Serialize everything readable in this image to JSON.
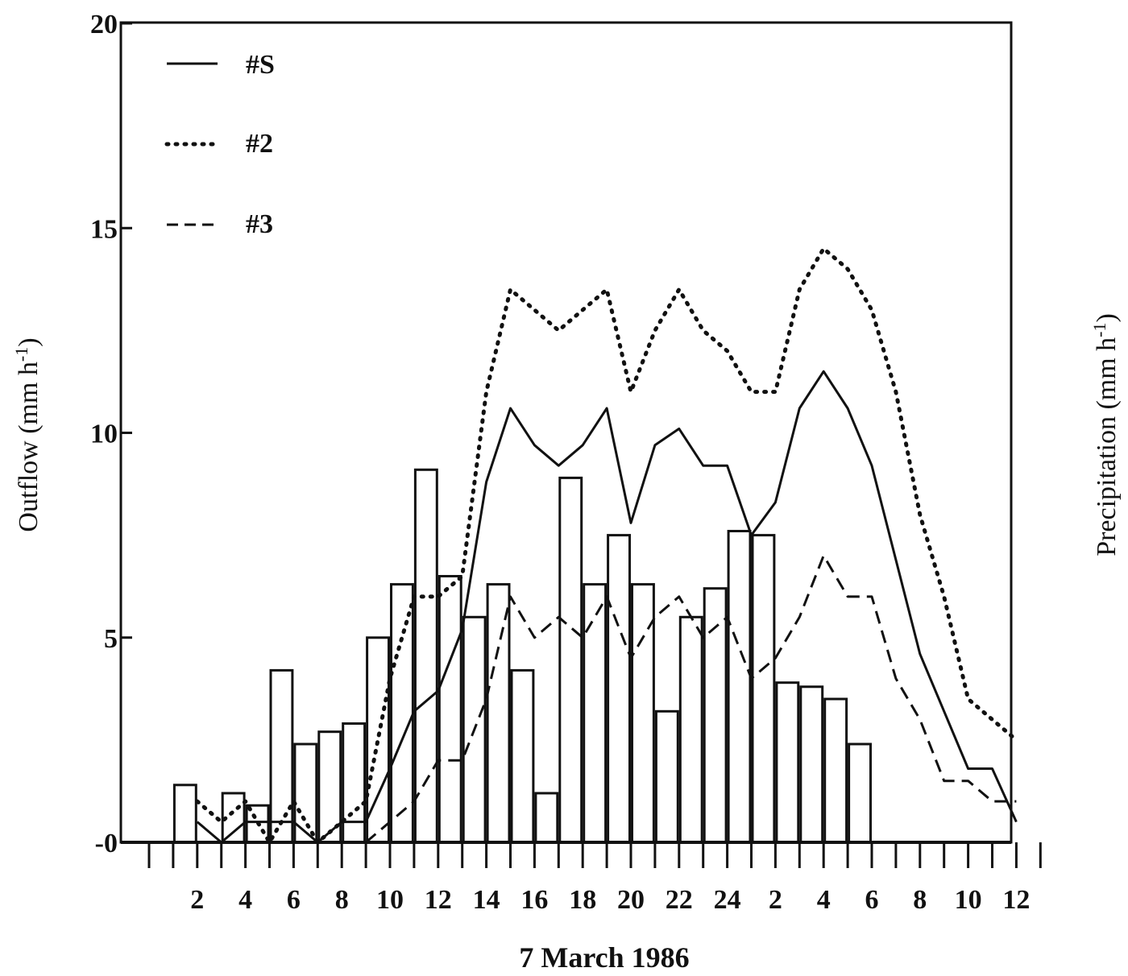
{
  "chart_data": {
    "type": "bar",
    "xlabel": "7 March 1986",
    "ylabel_left": "Outflow (mm h-1)",
    "ylabel_left_main": "Outflow (mm h",
    "ylabel_left_sup": "-1",
    "ylabel_left_close": ")",
    "ylabel_right": "Precipitation (mm h-1)",
    "ylabel_right_main": "Precipitation (mm h",
    "ylabel_right_sup": "-1",
    "ylabel_right_close": ")",
    "ylim": [
      0,
      20
    ],
    "yticks": [
      "-0",
      "5",
      "10",
      "15",
      "20"
    ],
    "xtick_labels": [
      "2",
      "4",
      "6",
      "8",
      "10",
      "12",
      "14",
      "16",
      "18",
      "20",
      "22",
      "24",
      "2",
      "4",
      "6",
      "8",
      "10",
      "12"
    ],
    "x_hours": [
      1,
      2,
      3,
      4,
      5,
      6,
      7,
      8,
      9,
      10,
      11,
      12,
      13,
      14,
      15,
      16,
      17,
      18,
      19,
      20,
      21,
      22,
      23,
      24,
      25,
      26,
      27,
      28,
      29,
      30,
      31,
      32,
      33,
      34,
      35,
      36
    ],
    "xlim": [
      0,
      37
    ],
    "precipitation": [
      0,
      1.4,
      0,
      1.2,
      0.9,
      4.2,
      2.4,
      2.7,
      2.9,
      5.0,
      6.3,
      9.1,
      6.5,
      5.5,
      6.3,
      4.2,
      1.2,
      8.9,
      6.3,
      7.5,
      6.3,
      3.2,
      5.5,
      6.2,
      7.6,
      7.5,
      3.9,
      3.8,
      3.5,
      2.4,
      0,
      0,
      0,
      0,
      0,
      0
    ],
    "series": [
      {
        "name": "#S",
        "style": "solid",
        "x": [
          2,
          3,
          4,
          5,
          6,
          7,
          8,
          9,
          10,
          11,
          12,
          13,
          14,
          15,
          16,
          17,
          18,
          19,
          20,
          21,
          22,
          23,
          24,
          25,
          26,
          27,
          28,
          29,
          30,
          31,
          32,
          33,
          34,
          35,
          36
        ],
        "values": [
          0.5,
          0,
          0.5,
          0.5,
          0.5,
          0,
          0.5,
          0.5,
          1.8,
          3.2,
          3.7,
          5.2,
          8.8,
          10.6,
          9.7,
          9.2,
          9.7,
          10.6,
          7.8,
          9.7,
          10.1,
          9.2,
          9.2,
          7.5,
          8.3,
          10.6,
          11.5,
          10.6,
          9.2,
          6.9,
          4.6,
          3.2,
          1.8,
          1.8,
          0.5
        ]
      },
      {
        "name": "#2",
        "style": "dotted",
        "x": [
          2,
          3,
          4,
          5,
          6,
          7,
          8,
          9,
          10,
          11,
          12,
          13,
          14,
          15,
          16,
          17,
          18,
          19,
          20,
          21,
          22,
          23,
          24,
          25,
          26,
          27,
          28,
          29,
          30,
          31,
          32,
          33,
          34,
          35,
          36
        ],
        "values": [
          1.0,
          0.5,
          1.0,
          0,
          1.0,
          0,
          0.5,
          1.0,
          4.0,
          6.0,
          6.0,
          6.5,
          11.0,
          13.5,
          13.0,
          12.5,
          13.0,
          13.5,
          11.0,
          12.5,
          13.5,
          12.5,
          12.0,
          11.0,
          11.0,
          13.5,
          14.5,
          14.0,
          13.0,
          11.0,
          8.0,
          6.0,
          3.5,
          3.0,
          2.5
        ]
      },
      {
        "name": "#3",
        "style": "dashed",
        "x": [
          9,
          10,
          11,
          12,
          13,
          14,
          15,
          16,
          17,
          18,
          19,
          20,
          21,
          22,
          23,
          24,
          25,
          26,
          27,
          28,
          29,
          30,
          31,
          32,
          33,
          34,
          35,
          36
        ],
        "values": [
          0,
          0.5,
          1.0,
          2.0,
          2.0,
          3.5,
          6.0,
          5.0,
          5.5,
          5.0,
          6.0,
          4.5,
          5.5,
          6.0,
          5.0,
          5.5,
          4.0,
          4.5,
          5.5,
          7.0,
          6.0,
          6.0,
          4.0,
          3.0,
          1.5,
          1.5,
          1.0,
          1.0
        ]
      }
    ]
  }
}
